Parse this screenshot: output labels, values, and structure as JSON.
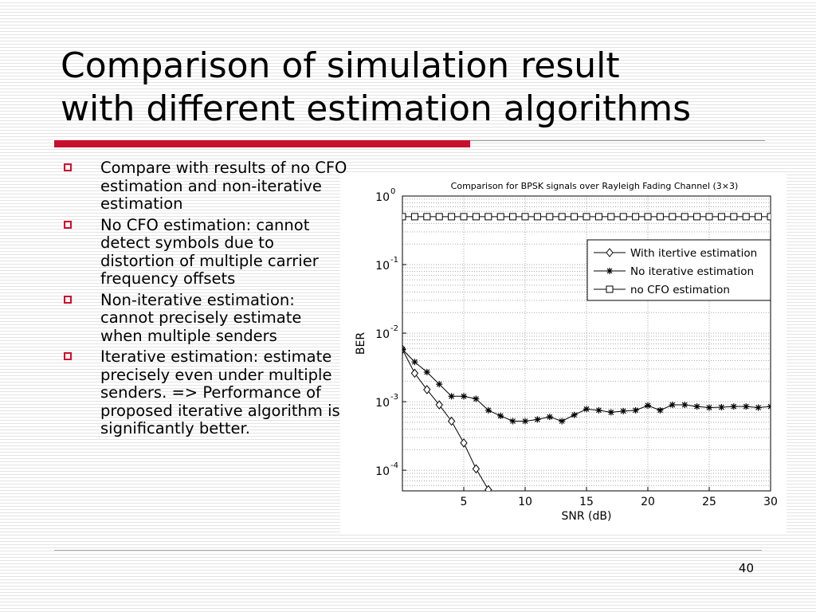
{
  "slide": {
    "title_lines": [
      "Comparison of simulation result",
      "with different estimation algorithms"
    ],
    "accent_color": "#c8102e",
    "page_number": "40"
  },
  "bullets": [
    "Compare with results of no CFO estimation and non-iterative estimation",
    "No CFO estimation: cannot detect symbols due to distortion of multiple carrier frequency offsets",
    "Non-iterative estimation: cannot precisely estimate when multiple senders",
    "Iterative estimation: estimate precisely even under multiple senders. => Performance of proposed iterative algorithm is significantly better."
  ],
  "chart_data": {
    "type": "line",
    "title": "Comparison for BPSK signals over Rayleigh Fading Channel (3×3)",
    "xlabel": "SNR (dB)",
    "ylabel": "BER",
    "xlim": [
      0,
      30
    ],
    "ylim": [
      5e-05,
      1
    ],
    "yscale": "log",
    "xticks": [
      5,
      10,
      15,
      20,
      25,
      30
    ],
    "ytick_exponents": [
      0,
      -1,
      -2,
      -3,
      -4
    ],
    "grid": true,
    "legend_position": "top-right",
    "series": [
      {
        "name": "With itertive estimation",
        "marker": "diamond",
        "x": [
          0,
          1,
          2,
          3,
          4,
          5,
          6,
          7
        ],
        "y": [
          0.0058,
          0.0026,
          0.0015,
          0.0009,
          0.00052,
          0.00025,
          0.000105,
          5.2e-05
        ]
      },
      {
        "name": "No iterative estimation",
        "marker": "star",
        "x": [
          0,
          1,
          2,
          3,
          4,
          5,
          6,
          7,
          8,
          9,
          10,
          11,
          12,
          13,
          14,
          15,
          16,
          17,
          18,
          19,
          20,
          21,
          22,
          23,
          24,
          25,
          26,
          27,
          28,
          29,
          30
        ],
        "y": [
          0.0058,
          0.0038,
          0.0027,
          0.0018,
          0.0012,
          0.0012,
          0.0011,
          0.00075,
          0.00062,
          0.00052,
          0.00052,
          0.00055,
          0.0006,
          0.00052,
          0.00064,
          0.00078,
          0.00075,
          0.0007,
          0.00073,
          0.00075,
          0.00088,
          0.00075,
          0.0009,
          0.0009,
          0.00085,
          0.00082,
          0.00083,
          0.00085,
          0.00085,
          0.00082,
          0.00085
        ]
      },
      {
        "name": "no CFO estimation",
        "marker": "square",
        "x": [
          0,
          1,
          2,
          3,
          4,
          5,
          6,
          7,
          8,
          9,
          10,
          11,
          12,
          13,
          14,
          15,
          16,
          17,
          18,
          19,
          20,
          21,
          22,
          23,
          24,
          25,
          26,
          27,
          28,
          29,
          30
        ],
        "y": [
          0.5,
          0.5,
          0.5,
          0.5,
          0.5,
          0.5,
          0.5,
          0.5,
          0.5,
          0.5,
          0.5,
          0.5,
          0.5,
          0.5,
          0.5,
          0.5,
          0.5,
          0.5,
          0.5,
          0.5,
          0.5,
          0.5,
          0.5,
          0.5,
          0.5,
          0.5,
          0.5,
          0.5,
          0.5,
          0.5,
          0.5
        ]
      }
    ]
  }
}
